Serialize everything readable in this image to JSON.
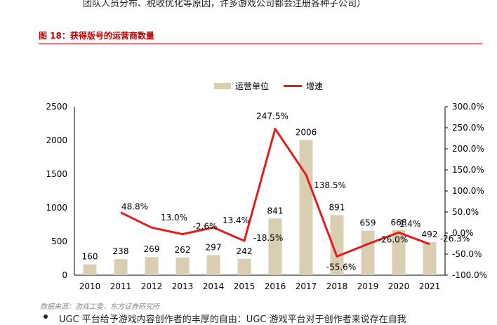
{
  "header": {
    "top_text": "团队人员分布、税收优化等原因，许多游戏公司都会注册各种子公司）",
    "figure_title": "图 18：获得版号的运营商数量"
  },
  "footer": {
    "source": "数据来源：游戏工委，东方证券研究所",
    "next_text": "UGC 平台给予游戏内容创作者的丰厚的自由：UGC 游戏平台对于创作者来说存在自我"
  },
  "colors": {
    "bar": "#d9ceb1",
    "line": "#e01e1e",
    "title": "#c00000"
  },
  "chart_data": {
    "type": "bar+line",
    "categories": [
      "2010",
      "2011",
      "2012",
      "2013",
      "2014",
      "2015",
      "2016",
      "2017",
      "2018",
      "2019",
      "2020",
      "2021"
    ],
    "series": [
      {
        "name": "运营单位",
        "type": "bar",
        "axis": "left",
        "values": [
          160,
          238,
          269,
          262,
          297,
          242,
          841,
          2006,
          891,
          659,
          668,
          492
        ],
        "labels": [
          "160",
          "238",
          "269",
          "262",
          "297",
          "242",
          "841",
          "2006",
          "891",
          "659",
          "668",
          "492"
        ]
      },
      {
        "name": "增速",
        "type": "line",
        "axis": "right",
        "values": [
          null,
          48.8,
          13.0,
          -2.6,
          13.4,
          -18.5,
          247.5,
          138.5,
          -55.6,
          -26.0,
          1.4,
          -26.3
        ],
        "labels": [
          "",
          "48.8%",
          "13.0%",
          "-2.6%",
          "13.4%",
          "-18.5%",
          "247.5%",
          "138.5%",
          "-55.6%",
          "-26.0%",
          "1.4%",
          "-26.3%"
        ]
      }
    ],
    "y_left": {
      "min": 0,
      "max": 2500,
      "ticks": [
        "0",
        "500",
        "1000",
        "1500",
        "2000",
        "2500"
      ]
    },
    "y_right": {
      "min": -100,
      "max": 300,
      "ticks": [
        "-100.0%",
        "-50.0%",
        "0.0%",
        "50.0%",
        "100.0%",
        "150.0%",
        "200.0%",
        "250.0%",
        "300.0%"
      ]
    },
    "legend": {
      "position": "top",
      "items": [
        "运营单位",
        "增速"
      ]
    },
    "grid": false
  }
}
